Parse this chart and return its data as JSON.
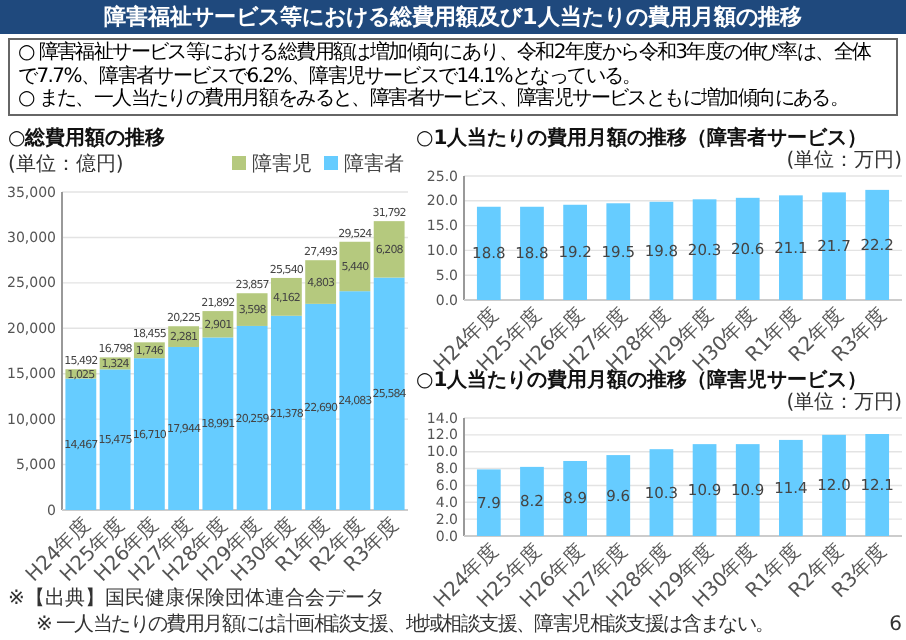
{
  "chart_data": [
    {
      "type": "other",
      "title": "障害福祉サービス等における総費用額及び1人当たりの費用月額の推移",
      "annotations": [
        "○ 障害福祉サービス等における総費用額は増加傾向にあり、令和2年度から令和3年度の伸び率は、全体で7.7%、障害者サービスで6.2%、障害児サービスで14.1%となっている。",
        "○ また、一人当たりの費用月額をみると、障害者サービス、障害児サービスともに増加傾向にある。"
      ]
    },
    {
      "type": "bar",
      "title": "○総費用額の推移",
      "stacked": true,
      "categories": [
        "H24年度",
        "H25年度",
        "H26年度",
        "H27年度",
        "H28年度",
        "H29年度",
        "H30年度",
        "R1年度",
        "R2年度",
        "R3年度"
      ],
      "series": [
        {
          "name": "障害者",
          "color": "#66ccff",
          "values": [
            14467,
            15475,
            16710,
            17944,
            18991,
            20259,
            21378,
            22690,
            24083,
            25584
          ],
          "value_labels": [
            "14,467",
            "15,475",
            "16,710",
            "17,944",
            "18,991",
            "20,259",
            "21,378",
            "22,690",
            "24,083",
            "25,584"
          ]
        },
        {
          "name": "障害児",
          "color": "#b5c97e",
          "values": [
            1025,
            1324,
            1746,
            2281,
            2901,
            3598,
            4162,
            4803,
            5440,
            6208
          ],
          "value_labels": [
            "1,025",
            "1,324",
            "1,746",
            "2,281",
            "2,901",
            "3,598",
            "4,162",
            "4,803",
            "5,440",
            "6,208"
          ]
        }
      ],
      "totals": [
        "15,492",
        "16,798",
        "18,455",
        "20,225",
        "21,892",
        "23,857",
        "25,540",
        "27,493",
        "29,524",
        "31,792"
      ],
      "ylim": [
        0,
        35000
      ],
      "yticks": [
        0,
        {
          "value": 5000,
          "label": "5,000"
        },
        {
          "value": 10000,
          "label": "10,000"
        },
        {
          "value": 15000,
          "label": "15,000"
        },
        {
          "value": 20000,
          "label": "20,000"
        },
        {
          "value": 25000,
          "label": "25,000"
        },
        {
          "value": 30000,
          "label": "30,000"
        },
        {
          "value": 35000,
          "label": "35,000"
        }
      ],
      "grid": "y",
      "legend": "top right",
      "annotations": [
        "(単位：億円)",
        "※【出典】国民健康保険団体連合会データ"
      ]
    },
    {
      "type": "bar",
      "title": "○1人当たりの費用月額の推移（障害者サービス）",
      "categories": [
        "H24年度",
        "H25年度",
        "H26年度",
        "H27年度",
        "H28年度",
        "H29年度",
        "H30年度",
        "R1年度",
        "R2年度",
        "R3年度"
      ],
      "values": [
        18.8,
        18.8,
        19.2,
        19.5,
        19.8,
        20.3,
        20.6,
        21.1,
        21.7,
        22.2
      ],
      "value_labels": [
        "18.8",
        "18.8",
        "19.2",
        "19.5",
        "19.8",
        "20.3",
        "20.6",
        "21.1",
        "21.7",
        "22.2"
      ],
      "color": "#66ccff",
      "ylim": [
        0,
        25
      ],
      "yticks": [
        {
          "value": 0,
          "label": "0.0"
        },
        {
          "value": 5,
          "label": "5.0"
        },
        {
          "value": 10,
          "label": "10.0"
        },
        {
          "value": 15,
          "label": "15.0"
        },
        {
          "value": 20,
          "label": "20.0"
        },
        {
          "value": 25,
          "label": "25.0"
        }
      ],
      "grid": "y",
      "annotations": [
        "(単位：万円)"
      ]
    },
    {
      "type": "bar",
      "title": "○1人当たりの費用月額の推移（障害児サービス）",
      "categories": [
        "H24年度",
        "H25年度",
        "H26年度",
        "H27年度",
        "H28年度",
        "H29年度",
        "H30年度",
        "R1年度",
        "R2年度",
        "R3年度"
      ],
      "values": [
        7.9,
        8.2,
        8.9,
        9.6,
        10.3,
        10.9,
        10.9,
        11.4,
        12.0,
        12.1
      ],
      "value_labels": [
        "7.9",
        "8.2",
        "8.9",
        "9.6",
        "10.3",
        "10.9",
        "10.9",
        "11.4",
        "12.0",
        "12.1"
      ],
      "color": "#66ccff",
      "ylim": [
        0,
        14
      ],
      "yticks": [
        {
          "value": 0,
          "label": "0.0"
        },
        {
          "value": 2,
          "label": "2.0"
        },
        {
          "value": 4,
          "label": "4.0"
        },
        {
          "value": 6,
          "label": "6.0"
        },
        {
          "value": 8,
          "label": "8.0"
        },
        {
          "value": 10,
          "label": "10.0"
        },
        {
          "value": 12,
          "label": "12.0"
        },
        {
          "value": 14,
          "label": "14.0"
        }
      ],
      "grid": "y",
      "annotations": [
        "(単位：万円)",
        "※ 一人当たりの費用月額には計画相談支援、地域相談支援、障害児相談支援は含まない。",
        "6"
      ]
    }
  ]
}
